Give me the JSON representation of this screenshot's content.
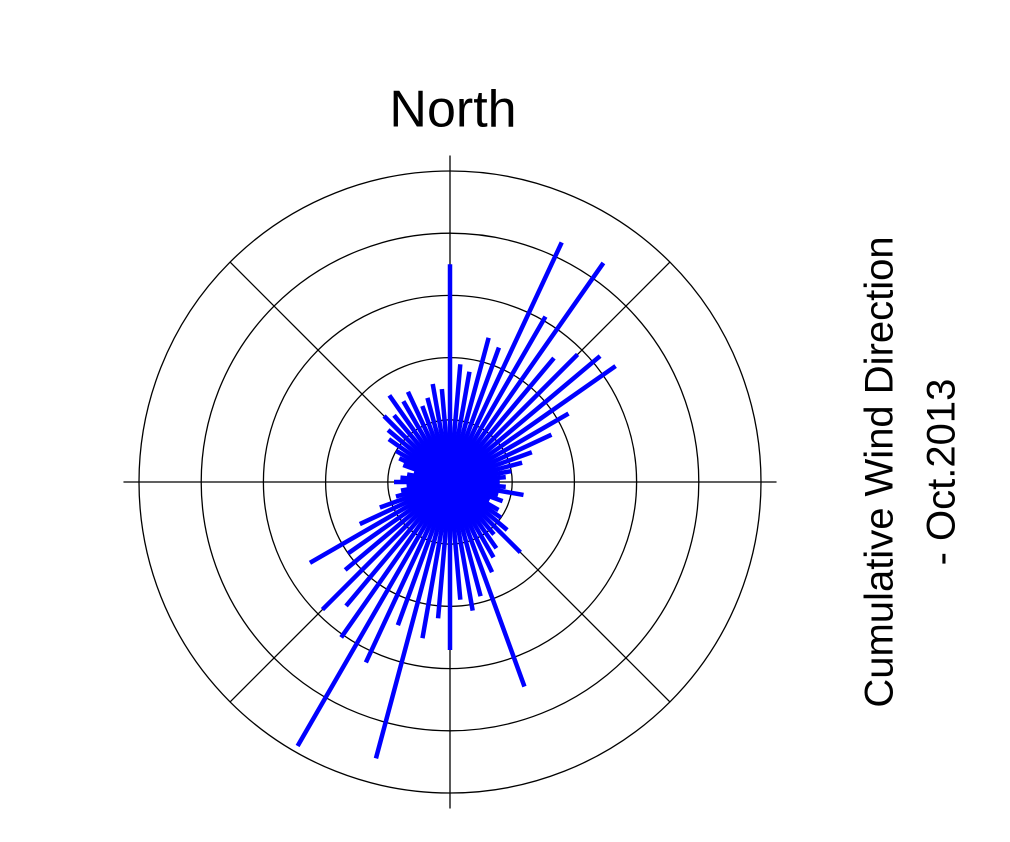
{
  "chart_data": {
    "type": "polar-spokes",
    "title": "North",
    "side_label": [
      "Cumulative Wind Direction",
      "- Oct.2013"
    ],
    "theta": [
      0,
      5,
      10,
      15,
      20,
      25,
      30,
      35,
      40,
      45,
      50,
      55,
      60,
      65,
      70,
      75,
      80,
      85,
      90,
      95,
      100,
      105,
      110,
      115,
      120,
      125,
      130,
      135,
      140,
      145,
      150,
      155,
      160,
      165,
      170,
      175,
      180,
      185,
      190,
      195,
      200,
      205,
      210,
      215,
      220,
      225,
      230,
      235,
      240,
      245,
      250,
      255,
      260,
      265,
      270,
      275,
      280,
      285,
      290,
      295,
      300,
      305,
      310,
      315,
      320,
      325,
      330,
      335,
      340,
      345,
      350,
      355
    ],
    "r": [
      3.5,
      1.9,
      1.8,
      2.4,
      2.3,
      4.25,
      3.07,
      4.3,
      2.6,
      2.9,
      3.15,
      3.25,
      2.2,
      1.8,
      1.4,
      1.2,
      1.0,
      0.9,
      0.8,
      0.9,
      1.2,
      0.8,
      0.9,
      0.7,
      0.9,
      1.0,
      1.2,
      1.6,
      1.1,
      1.3,
      1.4,
      1.6,
      3.5,
      1.9,
      2.1,
      1.9,
      2.7,
      2.2,
      2.55,
      4.6,
      2.45,
      3.2,
      4.9,
      3.05,
      2.6,
      2.9,
      2.2,
      2.0,
      2.6,
      1.6,
      1.2,
      0.9,
      0.8,
      0.7,
      0.9,
      0.8,
      0.7,
      0.6,
      0.8,
      0.9,
      1.0,
      1.2,
      1.3,
      1.5,
      1.4,
      1.7,
      1.5,
      1.6,
      1.3,
      1.4,
      1.6,
      1.5
    ],
    "color": "#0000ff",
    "rlim": [
      0,
      5
    ],
    "rticks": [
      1,
      2,
      3,
      4,
      5
    ],
    "grid": true
  }
}
